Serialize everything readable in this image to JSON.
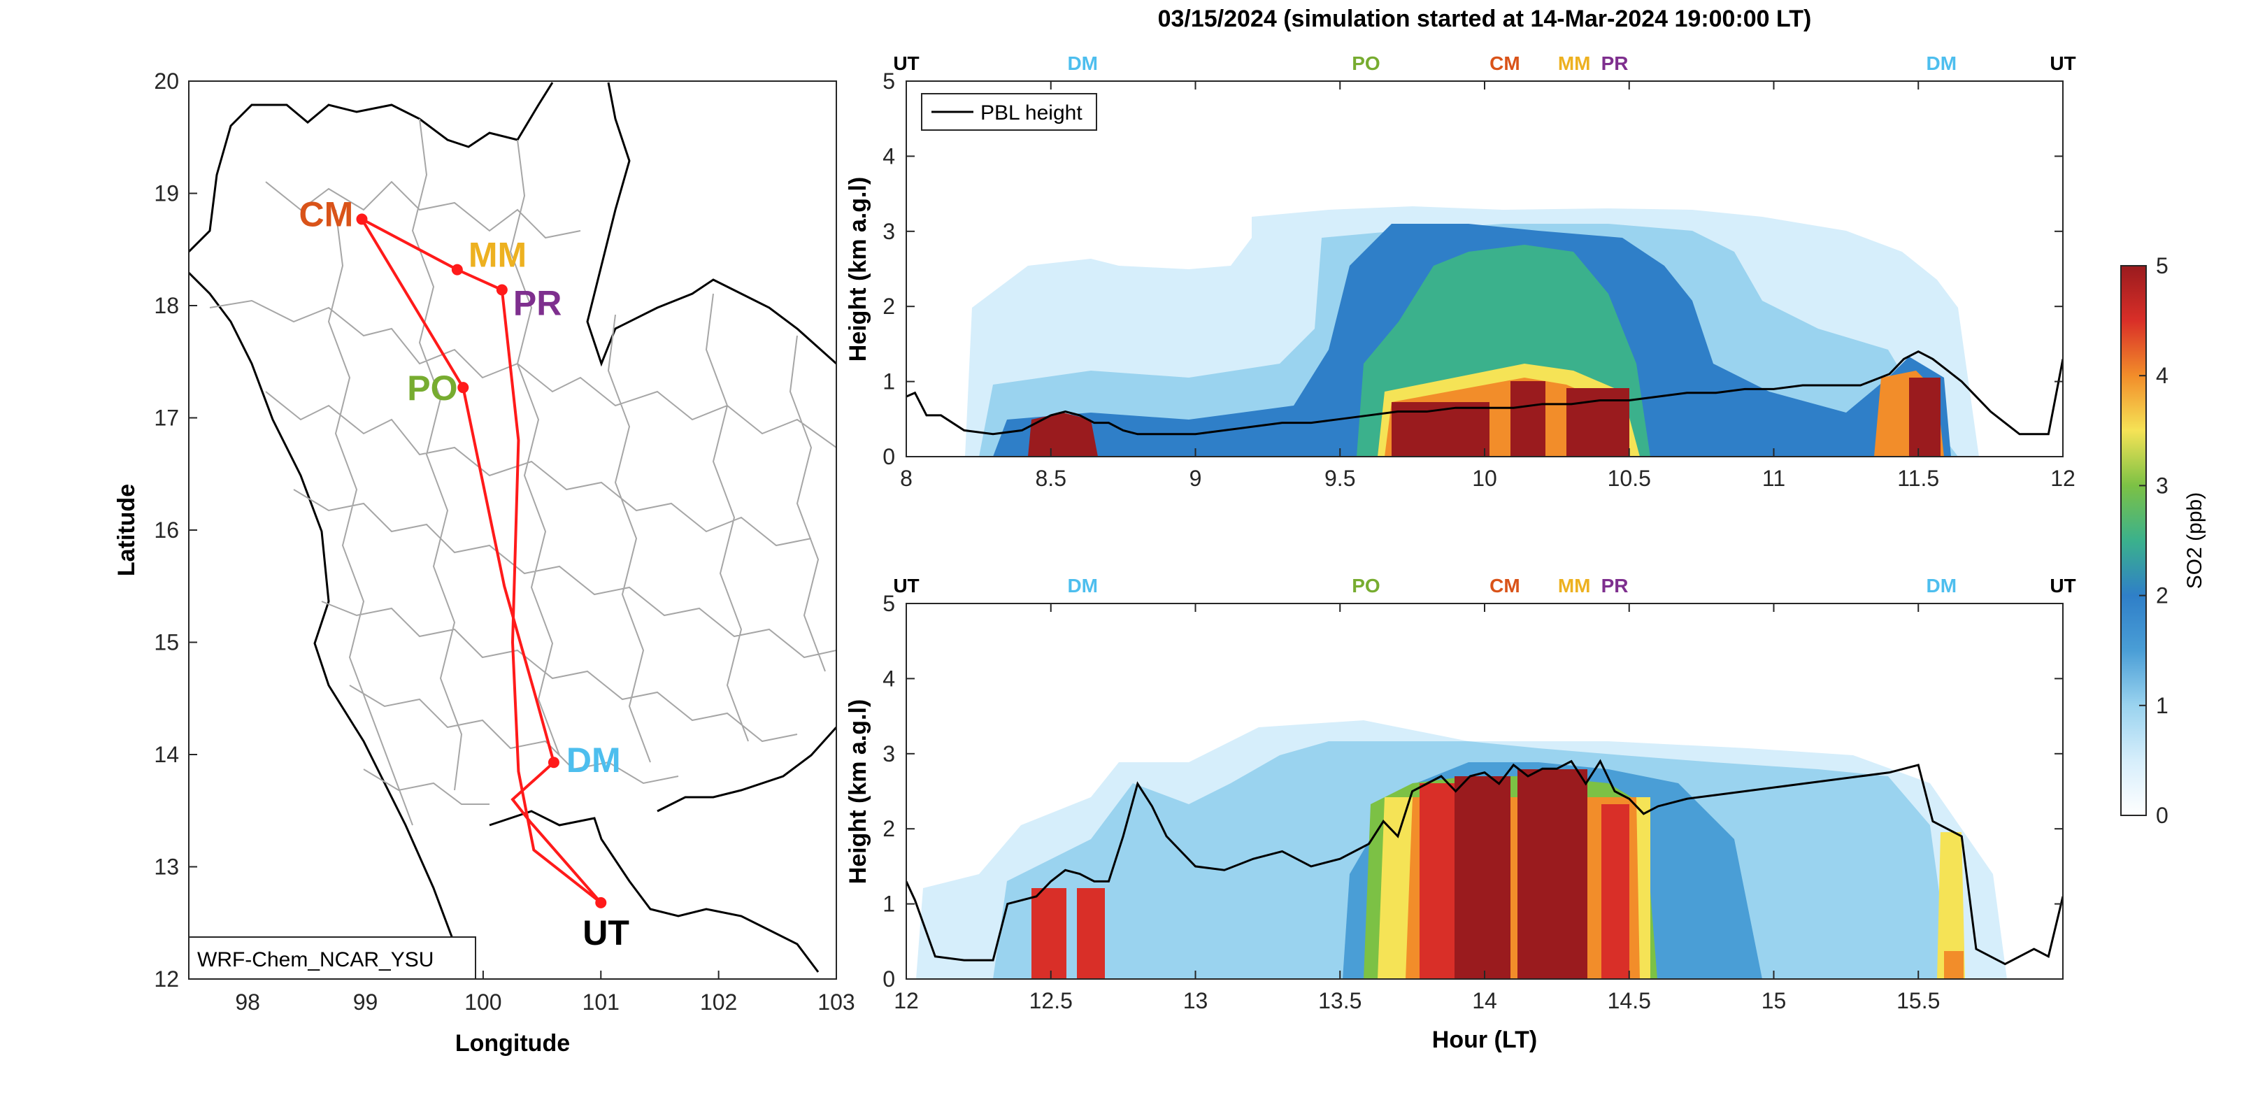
{
  "figure": {
    "title": "03/15/2024 (simulation started at 14-Mar-2024 19:00:00 LT)"
  },
  "map": {
    "xlabel": "Longitude",
    "ylabel": "Latitude",
    "xlim": [
      97.5,
      103
    ],
    "ylim": [
      12,
      20
    ],
    "xticks": [
      "98",
      "99",
      "100",
      "101",
      "102",
      "103"
    ],
    "yticks": [
      "12",
      "13",
      "14",
      "15",
      "16",
      "17",
      "18",
      "19",
      "20"
    ],
    "model_label": "WRF-Chem_NCAR_YSU",
    "route_color": "#ff1a1a",
    "sites": [
      {
        "code": "CM",
        "lon": 98.97,
        "lat": 18.77,
        "color": "#d95319"
      },
      {
        "code": "MM",
        "lon": 99.78,
        "lat": 18.32,
        "color": "#edb120"
      },
      {
        "code": "PR",
        "lon": 100.16,
        "lat": 18.14,
        "color": "#7e2f8e"
      },
      {
        "code": "PO",
        "lon": 99.83,
        "lat": 17.27,
        "color": "#77ac30"
      },
      {
        "code": "DM",
        "lon": 100.6,
        "lat": 13.93,
        "color": "#4dbeee"
      },
      {
        "code": "UT",
        "lon": 101.0,
        "lat": 12.68,
        "color": "#000000"
      }
    ],
    "route": [
      [
        101.0,
        12.68
      ],
      [
        100.43,
        13.15
      ],
      [
        100.3,
        13.85
      ],
      [
        100.25,
        15.0
      ],
      [
        100.3,
        16.8
      ],
      [
        100.16,
        18.14
      ],
      [
        99.78,
        18.32
      ],
      [
        98.97,
        18.77
      ],
      [
        99.83,
        17.27
      ],
      [
        100.18,
        15.5
      ],
      [
        100.45,
        14.5
      ],
      [
        100.6,
        13.93
      ],
      [
        100.25,
        13.6
      ],
      [
        100.4,
        13.4
      ],
      [
        101.0,
        12.68
      ]
    ]
  },
  "colorbar": {
    "label": "SO2 (ppb)",
    "range": [
      0,
      5
    ],
    "ticks": [
      "0",
      "1",
      "2",
      "3",
      "4",
      "5"
    ]
  },
  "chart_data": [
    {
      "type": "heatmap",
      "variable": "SO2 (ppb)",
      "xlabel": "",
      "ylabel": "Height (km a.g.l)",
      "xlim": [
        8,
        12
      ],
      "ylim": [
        0,
        5
      ],
      "xticks": [
        "8",
        "8.5",
        "9",
        "9.5",
        "10",
        "10.5",
        "11",
        "11.5",
        "12"
      ],
      "yticks": [
        "0",
        "1",
        "2",
        "3",
        "4",
        "5"
      ],
      "legend": {
        "entries": [
          "PBL height"
        ],
        "placement": "top-left"
      },
      "site_markers": [
        {
          "label": "UT",
          "x": 8.0,
          "color": "#000000"
        },
        {
          "label": "DM",
          "x": 8.61,
          "color": "#4dbeee"
        },
        {
          "label": "PO",
          "x": 9.59,
          "color": "#77ac30"
        },
        {
          "label": "CM",
          "x": 10.07,
          "color": "#d95319"
        },
        {
          "label": "MM",
          "x": 10.31,
          "color": "#edb120"
        },
        {
          "label": "PR",
          "x": 10.45,
          "color": "#7e2f8e"
        },
        {
          "label": "DM",
          "x": 11.58,
          "color": "#4dbeee"
        },
        {
          "label": "UT",
          "x": 12.0,
          "color": "#000000"
        }
      ],
      "series": [
        {
          "name": "PBL height",
          "x": [
            8.0,
            8.03,
            8.07,
            8.12,
            8.2,
            8.3,
            8.4,
            8.45,
            8.5,
            8.55,
            8.6,
            8.65,
            8.7,
            8.75,
            8.8,
            8.9,
            9.0,
            9.1,
            9.2,
            9.3,
            9.4,
            9.5,
            9.6,
            9.7,
            9.8,
            9.9,
            10.0,
            10.1,
            10.2,
            10.3,
            10.4,
            10.5,
            10.6,
            10.7,
            10.8,
            10.9,
            11.0,
            11.1,
            11.2,
            11.3,
            11.4,
            11.45,
            11.5,
            11.55,
            11.6,
            11.65,
            11.7,
            11.75,
            11.8,
            11.85,
            11.9,
            11.95,
            12.0
          ],
          "y": [
            0.8,
            0.85,
            0.55,
            0.55,
            0.35,
            0.3,
            0.35,
            0.45,
            0.55,
            0.6,
            0.55,
            0.45,
            0.45,
            0.35,
            0.3,
            0.3,
            0.3,
            0.35,
            0.4,
            0.45,
            0.45,
            0.5,
            0.55,
            0.6,
            0.6,
            0.65,
            0.65,
            0.65,
            0.7,
            0.7,
            0.75,
            0.75,
            0.8,
            0.85,
            0.85,
            0.9,
            0.9,
            0.95,
            0.95,
            0.95,
            1.1,
            1.3,
            1.4,
            1.3,
            1.15,
            1.0,
            0.8,
            0.6,
            0.45,
            0.3,
            0.3,
            0.3,
            1.3
          ]
        }
      ]
    },
    {
      "type": "heatmap",
      "variable": "SO2 (ppb)",
      "xlabel": "Hour (LT)",
      "ylabel": "Height (km a.g.l)",
      "xlim": [
        12,
        16
      ],
      "ylim": [
        0,
        5
      ],
      "xticks": [
        "12",
        "12.5",
        "13",
        "13.5",
        "14",
        "14.5",
        "15",
        "15.5"
      ],
      "yticks": [
        "0",
        "1",
        "2",
        "3",
        "4",
        "5"
      ],
      "site_markers": [
        {
          "label": "UT",
          "x": 12.0,
          "color": "#000000"
        },
        {
          "label": "DM",
          "x": 12.61,
          "color": "#4dbeee"
        },
        {
          "label": "PO",
          "x": 13.59,
          "color": "#77ac30"
        },
        {
          "label": "CM",
          "x": 14.07,
          "color": "#d95319"
        },
        {
          "label": "MM",
          "x": 14.31,
          "color": "#edb120"
        },
        {
          "label": "PR",
          "x": 14.45,
          "color": "#7e2f8e"
        },
        {
          "label": "DM",
          "x": 15.58,
          "color": "#4dbeee"
        },
        {
          "label": "UT",
          "x": 16.0,
          "color": "#000000"
        }
      ],
      "series": [
        {
          "name": "PBL height",
          "x": [
            12.0,
            12.03,
            12.1,
            12.2,
            12.3,
            12.35,
            12.45,
            12.5,
            12.55,
            12.6,
            12.65,
            12.7,
            12.75,
            12.8,
            12.85,
            12.9,
            13.0,
            13.1,
            13.2,
            13.3,
            13.4,
            13.5,
            13.6,
            13.65,
            13.7,
            13.75,
            13.8,
            13.85,
            13.9,
            13.95,
            14.0,
            14.05,
            14.1,
            14.15,
            14.2,
            14.25,
            14.3,
            14.35,
            14.4,
            14.45,
            14.5,
            14.55,
            14.6,
            14.7,
            14.8,
            14.9,
            15.0,
            15.1,
            15.2,
            15.3,
            15.4,
            15.5,
            15.55,
            15.6,
            15.65,
            15.7,
            15.75,
            15.8,
            15.85,
            15.9,
            15.95,
            16.0
          ],
          "y": [
            1.3,
            1.05,
            0.3,
            0.25,
            0.25,
            1.0,
            1.1,
            1.3,
            1.45,
            1.4,
            1.3,
            1.3,
            1.9,
            2.6,
            2.3,
            1.9,
            1.5,
            1.45,
            1.6,
            1.7,
            1.5,
            1.6,
            1.8,
            2.1,
            1.9,
            2.5,
            2.6,
            2.7,
            2.5,
            2.7,
            2.75,
            2.6,
            2.85,
            2.7,
            2.8,
            2.8,
            2.9,
            2.6,
            2.9,
            2.5,
            2.4,
            2.2,
            2.3,
            2.4,
            2.45,
            2.5,
            2.55,
            2.6,
            2.65,
            2.7,
            2.75,
            2.85,
            2.1,
            2.0,
            1.9,
            0.4,
            0.3,
            0.2,
            0.3,
            0.4,
            0.3,
            1.1
          ]
        }
      ]
    }
  ]
}
